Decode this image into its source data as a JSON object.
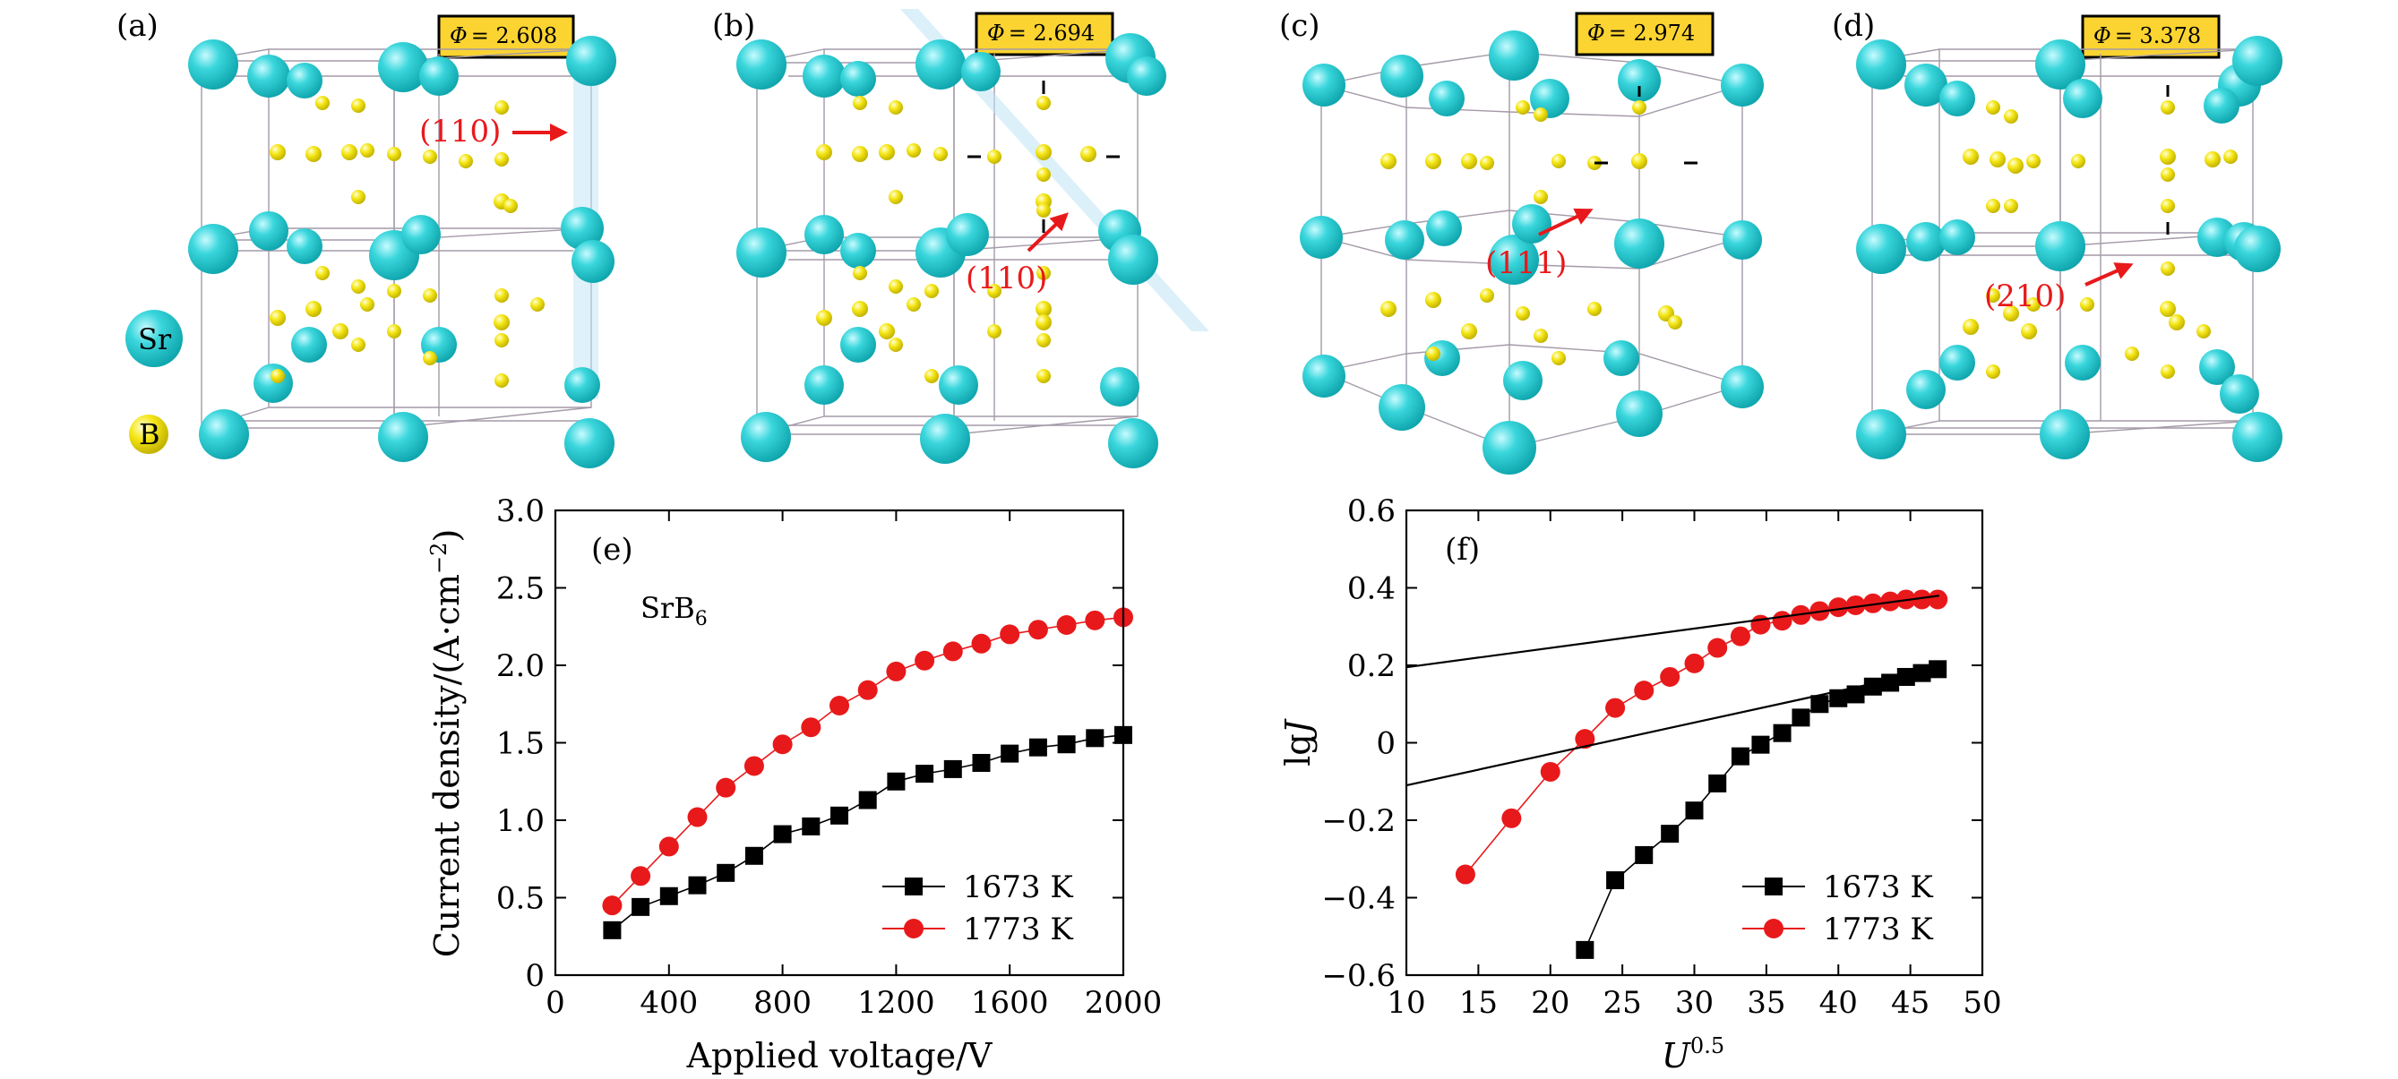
{
  "structures": [
    {
      "label": "(a)",
      "phi_symbol": "Φ",
      "phi_value": "= 2.608",
      "plane": "(110)"
    },
    {
      "label": "(b)",
      "phi_symbol": "Φ",
      "phi_value": "= 2.694",
      "plane": "(110)"
    },
    {
      "label": "(c)",
      "phi_symbol": "Φ",
      "phi_value": "= 2.974",
      "plane": "(111)"
    },
    {
      "label": "(d)",
      "phi_symbol": "Φ",
      "phi_value": "= 3.378",
      "plane": "(210)"
    }
  ],
  "atom_legend": [
    {
      "symbol": "Sr",
      "color": "#39d6dc"
    },
    {
      "symbol": "B",
      "color": "#f5e616"
    }
  ],
  "colors": {
    "sr": "#39d6dc",
    "b": "#f5e616",
    "phi_box": "#fbd431",
    "arrow": "#e8191b",
    "series_black": "#000000",
    "series_red": "#e8191b"
  },
  "chart_data": [
    {
      "type": "line",
      "panel_label": "(e)",
      "annotation_main": "SrB",
      "annotation_sub": "6",
      "xlabel": "Applied voltage/V",
      "ylabel": "Current density/(A·cm",
      "ylabel_sup": "−2",
      "ylabel_close": ")",
      "xlim": [
        0,
        2000
      ],
      "ylim": [
        0,
        3.0
      ],
      "xticks": [
        "0",
        "400",
        "800",
        "1200",
        "1600",
        "2000"
      ],
      "yticks": [
        "0",
        "0.5",
        "1.0",
        "1.5",
        "2.0",
        "2.5",
        "3.0"
      ],
      "legend_position": "bottom-right",
      "series": [
        {
          "name": "1673 K",
          "marker": "square",
          "color": "#000000",
          "x": [
            200,
            300,
            400,
            500,
            600,
            700,
            800,
            900,
            1000,
            1100,
            1200,
            1300,
            1400,
            1500,
            1600,
            1700,
            1800,
            1900,
            2000
          ],
          "y": [
            0.29,
            0.44,
            0.51,
            0.58,
            0.66,
            0.77,
            0.91,
            0.96,
            1.03,
            1.13,
            1.25,
            1.3,
            1.33,
            1.37,
            1.43,
            1.47,
            1.49,
            1.53,
            1.55
          ]
        },
        {
          "name": "1773 K",
          "marker": "circle",
          "color": "#e8191b",
          "x": [
            200,
            300,
            400,
            500,
            600,
            700,
            800,
            900,
            1000,
            1100,
            1200,
            1300,
            1400,
            1500,
            1600,
            1700,
            1800,
            1900,
            2000
          ],
          "y": [
            0.45,
            0.64,
            0.83,
            1.02,
            1.21,
            1.35,
            1.49,
            1.6,
            1.74,
            1.84,
            1.96,
            2.03,
            2.09,
            2.14,
            2.2,
            2.23,
            2.26,
            2.29,
            2.31
          ]
        }
      ]
    },
    {
      "type": "line",
      "panel_label": "(f)",
      "xlabel": "U",
      "xlabel_sup": "0.5",
      "ylabel": "lg",
      "ylabel_italic": "J",
      "xlim": [
        10,
        50
      ],
      "ylim": [
        -0.6,
        0.6
      ],
      "xticks": [
        "10",
        "15",
        "20",
        "25",
        "30",
        "35",
        "40",
        "45",
        "50"
      ],
      "yticks": [
        "−0.6",
        "−0.4",
        "−0.2",
        "0",
        "0.2",
        "0.4",
        "0.6"
      ],
      "legend_position": "bottom-right",
      "series": [
        {
          "name": "1673 K",
          "marker": "square",
          "color": "#000000",
          "x": [
            22.4,
            24.5,
            26.5,
            28.3,
            30.0,
            31.6,
            33.2,
            34.6,
            36.1,
            37.4,
            38.7,
            40.0,
            41.2,
            42.4,
            43.6,
            44.7,
            45.8,
            46.9
          ],
          "y": [
            -0.535,
            -0.355,
            -0.29,
            -0.235,
            -0.175,
            -0.105,
            -0.035,
            -0.005,
            0.025,
            0.065,
            0.1,
            0.115,
            0.125,
            0.145,
            0.155,
            0.17,
            0.18,
            0.19
          ]
        },
        {
          "name": "1773 K",
          "marker": "circle",
          "color": "#e8191b",
          "x": [
            14.1,
            17.3,
            20.0,
            22.4,
            24.5,
            26.5,
            28.3,
            30.0,
            31.6,
            33.2,
            34.6,
            36.1,
            37.4,
            38.7,
            40.0,
            41.2,
            42.4,
            43.6,
            44.7,
            45.8,
            46.9
          ],
          "y": [
            -0.34,
            -0.195,
            -0.075,
            0.01,
            0.09,
            0.135,
            0.17,
            0.205,
            0.245,
            0.275,
            0.305,
            0.315,
            0.33,
            0.34,
            0.35,
            0.355,
            0.36,
            0.365,
            0.37,
            0.37,
            0.37
          ]
        },
        {
          "name": "",
          "kind": "fit_line",
          "color": "#000000",
          "x": [
            10,
            47
          ],
          "y": [
            0.195,
            0.38
          ]
        },
        {
          "name": "",
          "kind": "fit_line",
          "color": "#000000",
          "x": [
            10,
            47
          ],
          "y": [
            -0.11,
            0.19
          ]
        }
      ]
    }
  ]
}
